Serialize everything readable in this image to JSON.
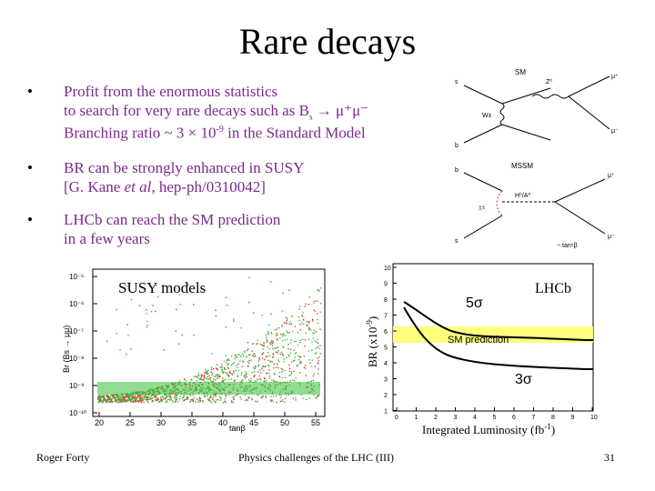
{
  "slide": {
    "title": "Rare decays",
    "bullets": [
      {
        "text": "Profit from the enormous statistics"
      },
      {
        "text": "to search for very rare decays such as B"
      },
      {
        "text": "s"
      },
      {
        "text": "→ μ⁺μ⁻"
      },
      {
        "text": "Branching ratio ~ 3 × 10"
      },
      {
        "text": "-9"
      },
      {
        "text": "in the Standard Model"
      }
    ],
    "bullet2_line1": "BR can be strongly enhanced in SUSY",
    "bullet2_line2_pre": "[G. Kane ",
    "bullet2_line2_it": "et al",
    "bullet2_line2_post": ", hep-ph/0310042]",
    "bullet3_line1": "LHCb can reach the SM prediction",
    "bullet3_line2": "in a few years",
    "bullet_glyph": "•"
  },
  "feynman": {
    "top_label": "SM",
    "bottom_label": "MSSM",
    "top_particles": [
      "s",
      "b",
      "W±",
      "Z⁰",
      "μ⁺",
      "μ⁻"
    ],
    "bottom_particles": [
      "b",
      "s",
      "H⁰/A⁰",
      "χ±",
      "μ⁺",
      "μ⁻",
      "~ tan⁶β"
    ]
  },
  "susy_plot": {
    "label": "SUSY models",
    "ylabel": "Br (Bs → μμ)",
    "xlabel": "tanβ",
    "yticks": [
      "10⁻⁵",
      "10⁻⁶",
      "10⁻⁷",
      "10⁻⁸",
      "10⁻⁹",
      "10⁻¹⁰"
    ],
    "xticks": [
      "20",
      "25",
      "30",
      "35",
      "40",
      "45",
      "50",
      "55"
    ]
  },
  "lhcb_plot": {
    "label": "LHCb",
    "sigma5": "5σ",
    "sigma3": "3σ",
    "sm_prediction": "SM prediction",
    "ylabel": "BR (x10",
    "ylabel_sup": "-9",
    "ylabel_end": ")",
    "xlabel": "Integrated Luminosity (fb",
    "xlabel_sup": "-1",
    "xlabel_end": ")",
    "yticks": [
      "10",
      "9",
      "8",
      "7",
      "6",
      "5",
      "4",
      "3",
      "2",
      "1"
    ],
    "xticks": [
      "0",
      "1",
      "2",
      "3",
      "4",
      "5",
      "6",
      "7",
      "8",
      "9",
      "10"
    ],
    "sm_band_color": "#ffff80"
  },
  "footer": {
    "author": "Roger Forty",
    "talk": "Physics challenges of the LHC  (III)",
    "page": "31"
  }
}
